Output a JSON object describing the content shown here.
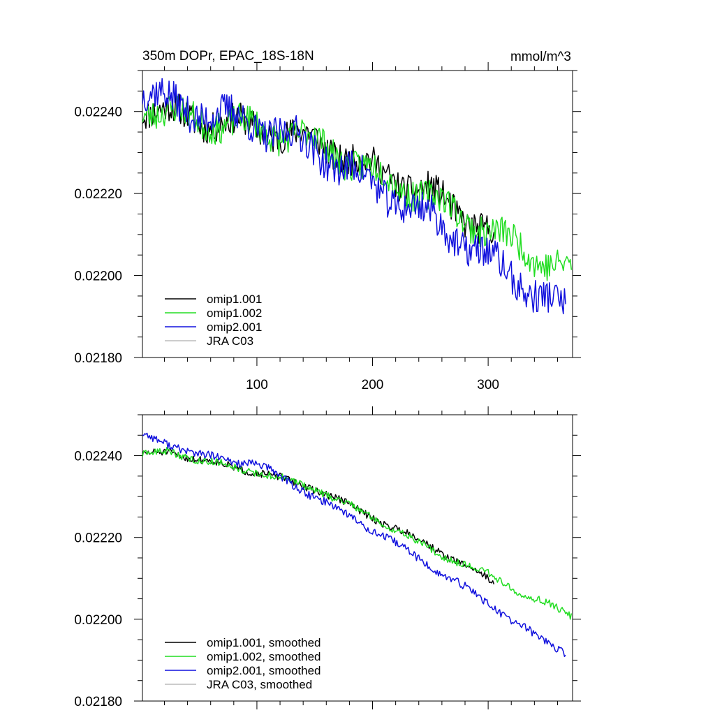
{
  "figure": {
    "title_left": "350m DOPr, EPAC_18S-18N",
    "title_right": "mmol/m^3"
  },
  "colors": {
    "omip1_001": "#000000",
    "omip1_002": "#22dd22",
    "omip2_001": "#1010dd",
    "jra_c03": "#bbbbbb"
  },
  "chart_data": [
    {
      "type": "line",
      "panel": "top",
      "title": "350m DOPr, EPAC_18S-18N",
      "units": "mmol/m^3",
      "xlabel": "",
      "ylabel": "",
      "xlim": [
        1,
        373
      ],
      "ylim": [
        0.0218,
        0.0225
      ],
      "y_ticks": [
        "0.02240",
        "0.02220",
        "0.02200",
        "0.02180"
      ],
      "x_ticks": [
        "100",
        "200",
        "300"
      ],
      "legend_position": "bottom-left",
      "series": [
        {
          "name": "omip1.001",
          "color_key": "omip1_001",
          "noise": 3.8e-05,
          "seed": 11,
          "points": [
            [
              1,
              0.02241
            ],
            [
              50,
              0.02238
            ],
            [
              100,
              0.02236
            ],
            [
              150,
              0.02233
            ],
            [
              200,
              0.02226
            ],
            [
              250,
              0.0222
            ],
            [
              305,
              0.0221
            ]
          ]
        },
        {
          "name": "omip1.002",
          "color_key": "omip1_002",
          "noise": 3.8e-05,
          "seed": 23,
          "points": [
            [
              1,
              0.02241
            ],
            [
              50,
              0.02238
            ],
            [
              100,
              0.02236
            ],
            [
              150,
              0.02233
            ],
            [
              200,
              0.02225
            ],
            [
              250,
              0.02219
            ],
            [
              300,
              0.02211
            ],
            [
              340,
              0.02205
            ],
            [
              372,
              0.02201
            ]
          ]
        },
        {
          "name": "omip2.001",
          "color_key": "omip2_001",
          "noise": 4.2e-05,
          "seed": 37,
          "points": [
            [
              1,
              0.02245
            ],
            [
              25,
              0.02242
            ],
            [
              50,
              0.0224
            ],
            [
              100,
              0.02237
            ],
            [
              150,
              0.02231
            ],
            [
              200,
              0.02222
            ],
            [
              250,
              0.02214
            ],
            [
              300,
              0.02204
            ],
            [
              340,
              0.02196
            ],
            [
              367,
              0.02191
            ]
          ]
        },
        {
          "name": "JRA C03",
          "color_key": "jra_c03",
          "noise": 0,
          "seed": 0,
          "points": []
        }
      ]
    },
    {
      "type": "line",
      "panel": "bottom",
      "title": "",
      "xlabel": "",
      "ylabel": "",
      "xlim": [
        1,
        373
      ],
      "ylim": [
        0.0218,
        0.0225
      ],
      "y_ticks": [
        "0.02240",
        "0.02220",
        "0.02200",
        "0.02180"
      ],
      "legend_position": "bottom-left",
      "series": [
        {
          "name": "omip1.001, smoothed",
          "color_key": "omip1_001",
          "noise": 9e-06,
          "seed": 51,
          "points": [
            [
              1,
              0.0224
            ],
            [
              25,
              0.02241
            ],
            [
              50,
              0.02239
            ],
            [
              100,
              0.02236
            ],
            [
              150,
              0.02232
            ],
            [
              200,
              0.02225
            ],
            [
              250,
              0.02218
            ],
            [
              305,
              0.02209
            ]
          ]
        },
        {
          "name": "omip1.002, smoothed",
          "color_key": "omip1_002",
          "noise": 9e-06,
          "seed": 63,
          "points": [
            [
              1,
              0.0224
            ],
            [
              25,
              0.02241
            ],
            [
              50,
              0.02239
            ],
            [
              100,
              0.02236
            ],
            [
              150,
              0.02232
            ],
            [
              200,
              0.02225
            ],
            [
              250,
              0.02217
            ],
            [
              300,
              0.02211
            ],
            [
              340,
              0.02205
            ],
            [
              372,
              0.02201
            ]
          ]
        },
        {
          "name": "omip2.001, smoothed",
          "color_key": "omip2_001",
          "noise": 1e-05,
          "seed": 77,
          "points": [
            [
              1,
              0.02245
            ],
            [
              25,
              0.02243
            ],
            [
              50,
              0.0224
            ],
            [
              100,
              0.02238
            ],
            [
              150,
              0.0223
            ],
            [
              200,
              0.02222
            ],
            [
              250,
              0.02213
            ],
            [
              300,
              0.02204
            ],
            [
              340,
              0.02196
            ],
            [
              367,
              0.02192
            ]
          ]
        },
        {
          "name": "JRA C03, smoothed",
          "color_key": "jra_c03",
          "noise": 0,
          "seed": 0,
          "points": []
        }
      ]
    }
  ]
}
